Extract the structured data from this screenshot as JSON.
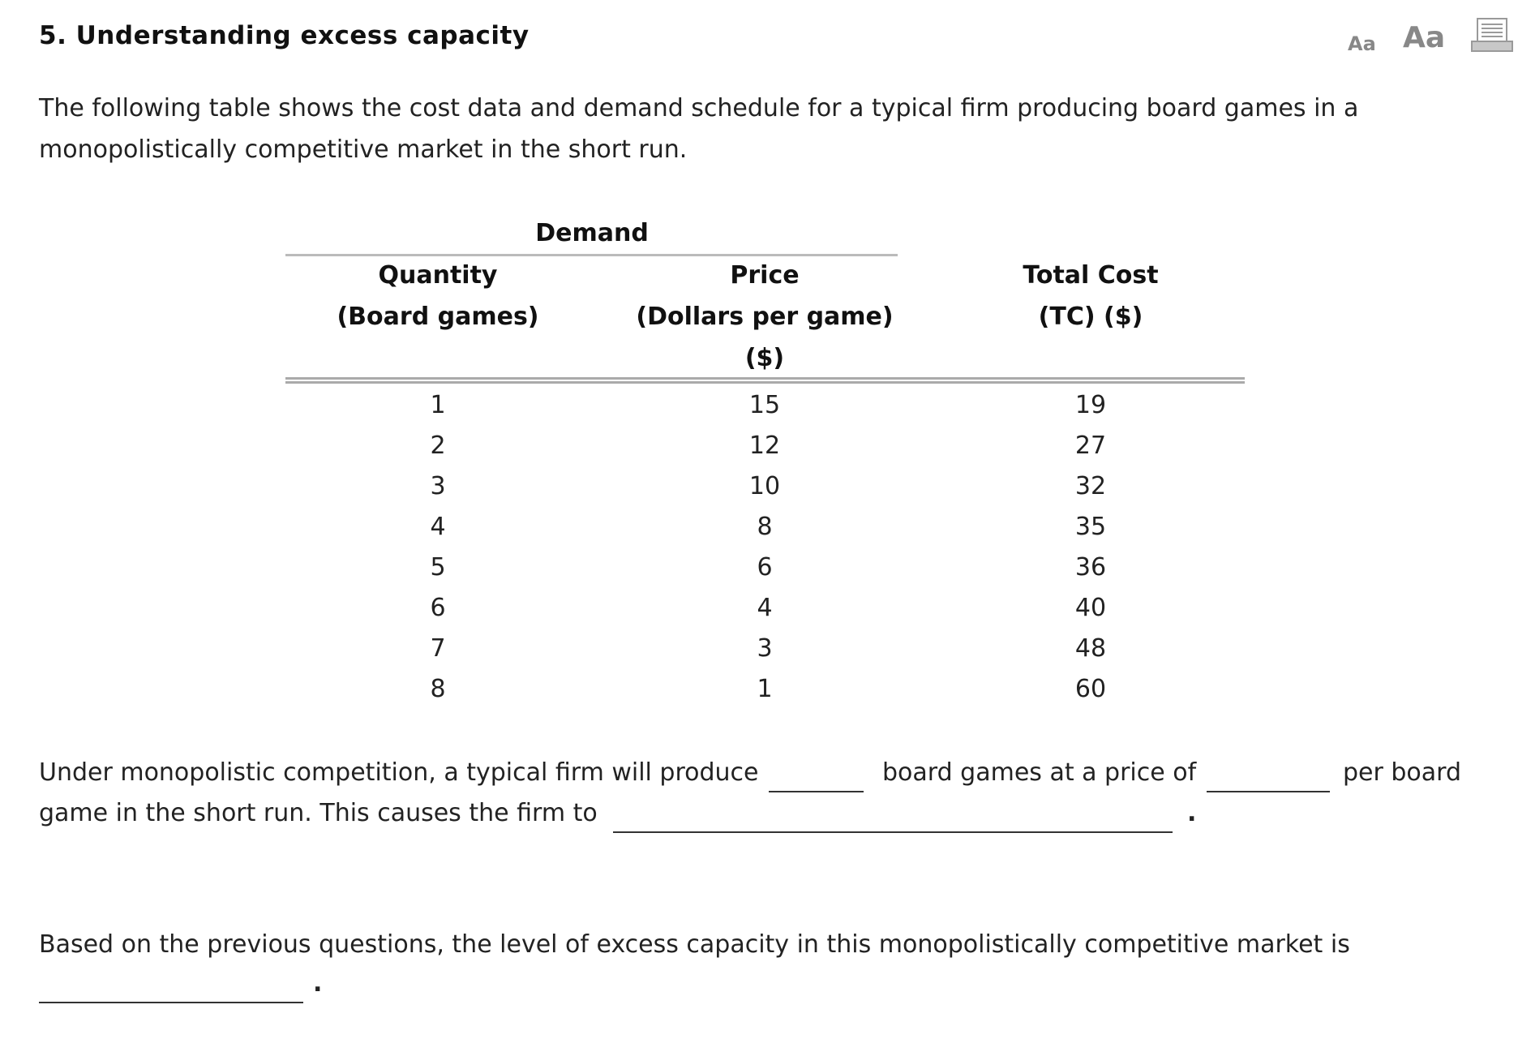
{
  "header": {
    "title": "5. Understanding excess capacity",
    "font_small_label": "Aa",
    "font_large_label": "Aa",
    "print_icon": "printer-icon"
  },
  "intro": "The following table shows the cost data and demand schedule for a typical firm producing board games in a monopolistically competitive market in the short run.",
  "table": {
    "group_header": "Demand",
    "headers": [
      {
        "line1": "Quantity",
        "line2": "(Board games)",
        "line3": ""
      },
      {
        "line1": "Price",
        "line2": "(Dollars per game)",
        "line3": "($)"
      },
      {
        "line1": "Total Cost",
        "line2": "(TC) ($)",
        "line3": ""
      }
    ],
    "rows": [
      [
        "1",
        "15",
        "19"
      ],
      [
        "2",
        "12",
        "27"
      ],
      [
        "3",
        "10",
        "32"
      ],
      [
        "4",
        "8",
        "35"
      ],
      [
        "5",
        "6",
        "36"
      ],
      [
        "6",
        "4",
        "40"
      ],
      [
        "7",
        "3",
        "48"
      ],
      [
        "8",
        "1",
        "60"
      ]
    ]
  },
  "question1": {
    "part1": "Under monopolistic competition, a typical firm will produce",
    "part2": "board games at a price of",
    "part3": "per board",
    "part4": "game in the short run. This causes the firm to",
    "part5": "."
  },
  "question2": {
    "part1": "Based on the previous questions, the level of excess capacity in this monopolistically competitive market is",
    "part2": "."
  }
}
